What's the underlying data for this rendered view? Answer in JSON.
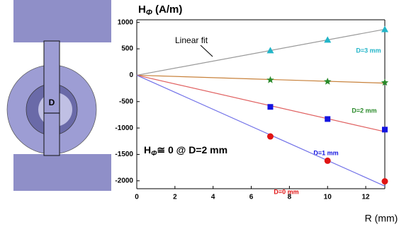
{
  "chart_data": {
    "type": "scatter",
    "ylabel": {
      "main": "H",
      "sub": "Φ",
      "rest": " (A/m)"
    },
    "xlabel": "R (mm)",
    "annotation": {
      "main": "H",
      "sub": "Φ",
      "rest": "≅ 0  @ D=2 mm"
    },
    "fit_label": "Linear fit",
    "diagram_label": "D",
    "xlim": [
      0,
      13
    ],
    "xticks": [
      0,
      2,
      4,
      6,
      8,
      10,
      12
    ],
    "ylim": [
      -2150,
      1050
    ],
    "yticks": [
      1000,
      500,
      0,
      -500,
      -1000,
      -1500,
      -2000
    ],
    "series": [
      {
        "name": "D=3 mm",
        "color": "#22b5c8",
        "marker": "triangle",
        "x": [
          7,
          10,
          13
        ],
        "values": [
          470,
          670,
          870
        ],
        "fit": {
          "color": "#999999",
          "x": [
            0,
            13
          ],
          "values": [
            0,
            870
          ]
        }
      },
      {
        "name": "D=2 mm",
        "color": "#2a8a2a",
        "marker": "star",
        "x": [
          7,
          10,
          13
        ],
        "values": [
          -90,
          -120,
          -140
        ],
        "fit": {
          "color": "#c8823c",
          "x": [
            0,
            13
          ],
          "values": [
            0,
            -150
          ]
        }
      },
      {
        "name": "D=1 mm",
        "color": "#1414e0",
        "marker": "square",
        "x": [
          7,
          10,
          13
        ],
        "values": [
          -600,
          -830,
          -1030
        ],
        "fit": {
          "color": "#e06060",
          "x": [
            0,
            13
          ],
          "values": [
            0,
            -1070
          ]
        }
      },
      {
        "name": "D=0 mm",
        "color": "#e01414",
        "marker": "circle",
        "x": [
          7,
          10,
          13
        ],
        "values": [
          -1160,
          -1620,
          -2010
        ],
        "fit": {
          "color": "#7070e8",
          "x": [
            0,
            13
          ],
          "values": [
            0,
            -2100
          ]
        }
      }
    ]
  }
}
